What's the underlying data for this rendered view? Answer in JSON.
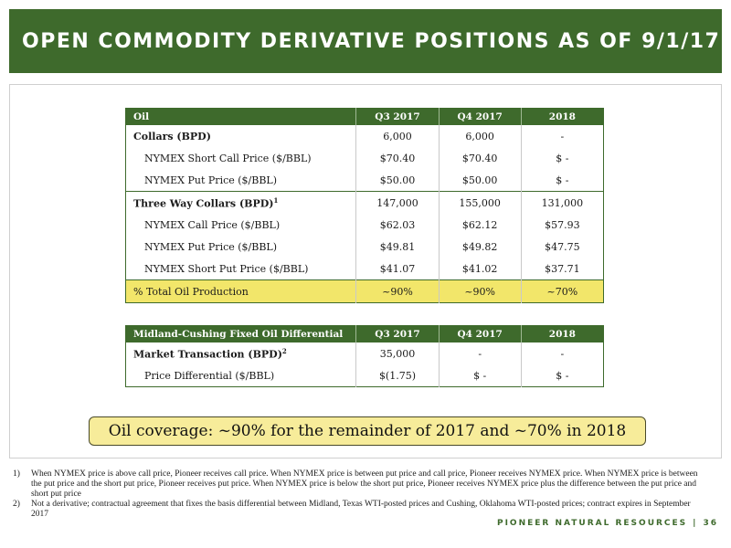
{
  "title": "OPEN COMMODITY DERIVATIVE POSITIONS AS OF 9/1/17",
  "oil_table": {
    "headers": [
      "Oil",
      "Q3 2017",
      "Q4 2017",
      "2018"
    ],
    "rows": [
      {
        "label": "Collars (BPD)",
        "q3": "6,000",
        "q4": "6,000",
        "y2018": "-"
      },
      {
        "label": "NYMEX Short Call Price ($/BBL)",
        "q3": "$70.40",
        "q4": "$70.40",
        "y2018": "$ -"
      },
      {
        "label": "NYMEX Put Price ($/BBL)",
        "q3": "$50.00",
        "q4": "$50.00",
        "y2018": "$ -"
      },
      {
        "label": "Three Way Collars (BPD)",
        "sup": "1",
        "q3": "147,000",
        "q4": "155,000",
        "y2018": "131,000"
      },
      {
        "label": "NYMEX Call Price ($/BBL)",
        "q3": "$62.03",
        "q4": "$62.12",
        "y2018": "$57.93"
      },
      {
        "label": "NYMEX Put Price ($/BBL)",
        "q3": "$49.81",
        "q4": "$49.82",
        "y2018": "$47.75"
      },
      {
        "label": "NYMEX Short Put Price ($/BBL)",
        "q3": "$41.07",
        "q4": "$41.02",
        "y2018": "$37.71"
      },
      {
        "label": "% Total Oil Production",
        "q3": "~90%",
        "q4": "~90%",
        "y2018": "~70%"
      }
    ]
  },
  "diff_table": {
    "headers": [
      "Midland-Cushing Fixed Oil Differential",
      "Q3 2017",
      "Q4 2017",
      "2018"
    ],
    "rows": [
      {
        "label": "Market Transaction (BPD)",
        "sup": "2",
        "q3": "35,000",
        "q4": "-",
        "y2018": "-"
      },
      {
        "label": "Price Differential ($/BBL)",
        "q3": "$(1.75)",
        "q4": "$ -",
        "y2018": "$ -"
      }
    ]
  },
  "coverage_text": "Oil coverage: ~90% for the remainder of 2017 and ~70% in 2018",
  "footnotes": [
    {
      "num": "1)",
      "text": "When NYMEX price is above call price, Pioneer receives call price. When NYMEX price is between put price and call price, Pioneer receives NYMEX price. When NYMEX price is between the put price and the short put price, Pioneer receives put price. When NYMEX price is below the short put price, Pioneer receives NYMEX price plus the difference between the put price and short put price"
    },
    {
      "num": "2)",
      "text": "Not a derivative; contractual agreement that fixes the basis differential between Midland, Texas WTI-posted prices and Cushing, Oklahoma WTI-posted prices; contract expires in September 2017"
    }
  ],
  "brand": "PIONEER NATURAL RESOURCES",
  "brand_separator": "|",
  "page_number": "36",
  "colors": {
    "brand_green": "#3e6a2c",
    "highlight_yellow": "#f2e66a"
  }
}
